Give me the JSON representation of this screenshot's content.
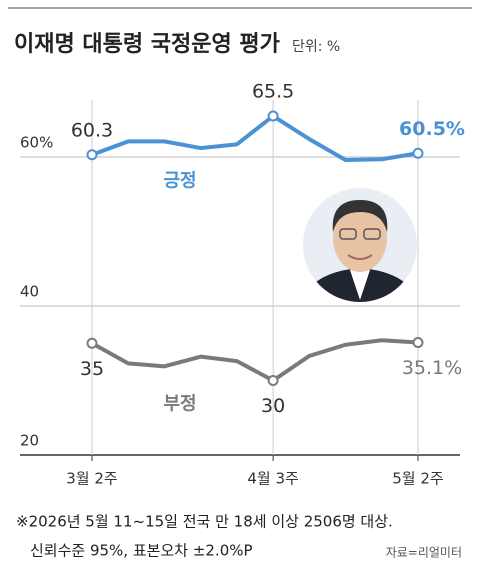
{
  "chart_data": {
    "type": "line",
    "title": "이재명 대통령 국정운영 평가",
    "unit": "단위: %",
    "categories": [
      "3월 2주",
      null,
      null,
      null,
      null,
      "4월 3주",
      null,
      null,
      null,
      "5월 2주"
    ],
    "series": [
      {
        "name": "긍정",
        "color": "#4b92d4",
        "values": [
          60.3,
          62.1,
          62.1,
          61.2,
          61.7,
          65.5,
          62.4,
          59.6,
          59.7,
          60.5
        ],
        "value_labels": [
          "60.3",
          null,
          null,
          null,
          null,
          "65.5",
          null,
          null,
          null,
          "60.5%"
        ]
      },
      {
        "name": "부정",
        "color": "#7a7a7a",
        "values": [
          35,
          32.3,
          31.9,
          33.2,
          32.6,
          30,
          33.3,
          34.8,
          35.4,
          35.1
        ],
        "value_labels": [
          "35",
          null,
          null,
          null,
          null,
          "30",
          null,
          null,
          null,
          "35.1%"
        ]
      }
    ],
    "ylim": [
      20,
      67
    ],
    "yticks": [
      20,
      40,
      {
        "value": 60,
        "label": "60%"
      }
    ],
    "grid": true,
    "note": [
      "※2026년 5월 11~15일 전국 만 18세 이상 2506명 대상.",
      "신뢰수준 95%, 표본오차 ±2.0%P"
    ],
    "source": "자료=리얼미터"
  }
}
